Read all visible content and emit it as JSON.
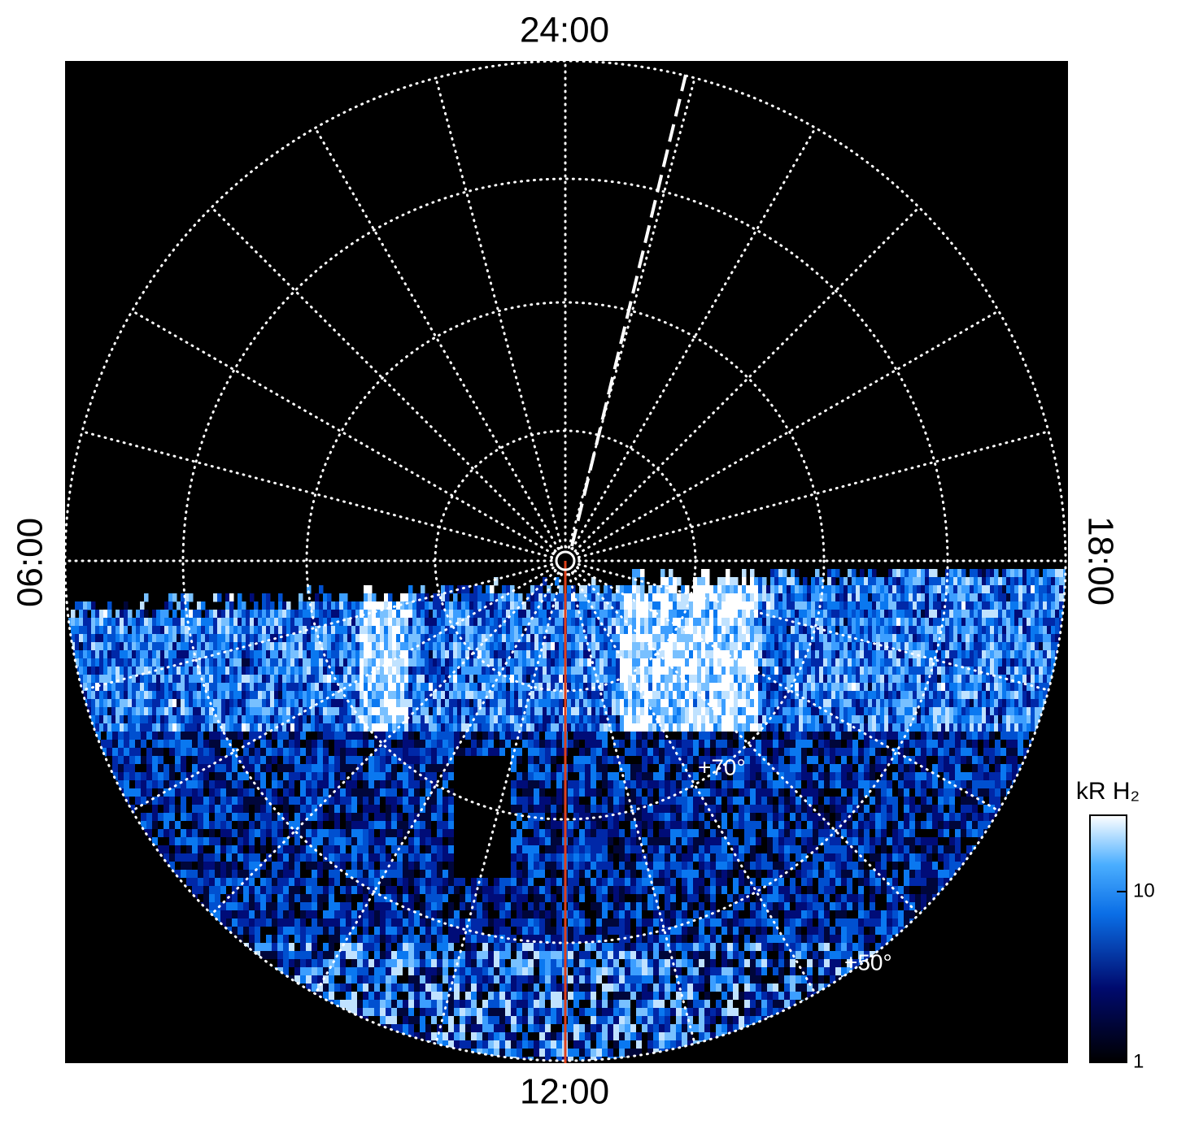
{
  "chart_data": {
    "type": "polar-image",
    "local_time_labels": {
      "top": "24:00",
      "left": "06:00",
      "bottom": "12:00",
      "right": "18:00"
    },
    "latitude_labels": [
      "+70°",
      "+50°"
    ],
    "colorbar": {
      "title": "kR H₂",
      "clim": [
        1,
        28
      ],
      "ticks": [
        1,
        10
      ],
      "log": true
    }
  }
}
